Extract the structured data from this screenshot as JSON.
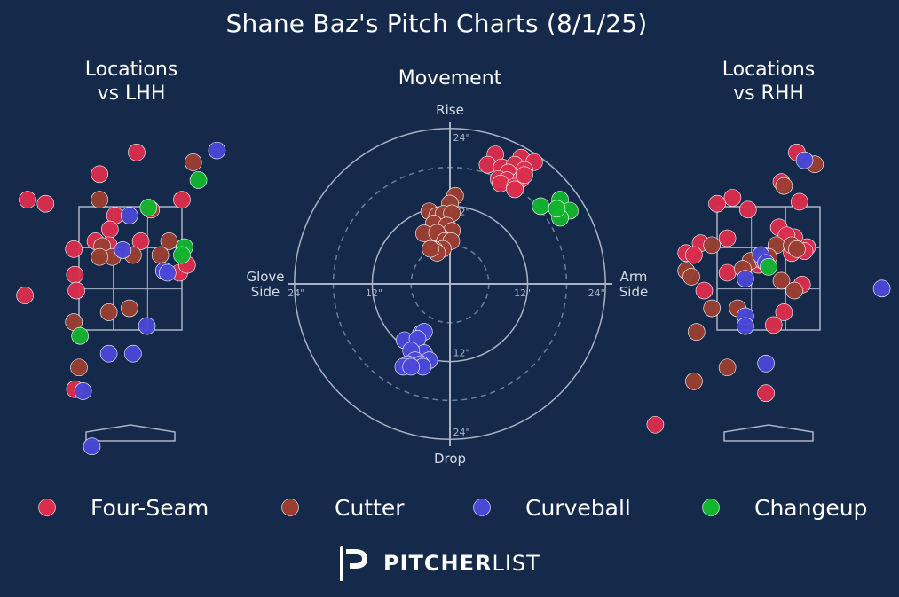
{
  "title": "Shane Baz's Pitch Charts (8/1/25)",
  "colors": {
    "background": "#152a4b",
    "four_seam": "#dc2d4d",
    "cutter": "#9a3e32",
    "curveball": "#4a48d8",
    "changeup": "#13b52e",
    "guide": "#a9b3c4"
  },
  "legend": [
    {
      "key": "four_seam",
      "label": "Four-Seam",
      "color": "#dc2d4d"
    },
    {
      "key": "cutter",
      "label": "Cutter",
      "color": "#9a3e32"
    },
    {
      "key": "curveball",
      "label": "Curveball",
      "color": "#4a48d8"
    },
    {
      "key": "changeup",
      "label": "Changeup",
      "color": "#13b52e"
    }
  ],
  "brand": {
    "icon": "pitcherlist-p-icon",
    "bold": "PITCHER",
    "light": "LIST"
  },
  "chart_data": [
    {
      "type": "scatter",
      "title": "Locations\nvs LHH",
      "title_lines": [
        "Locations",
        "vs LHH"
      ],
      "units": "strike-zone units (zone spans x -1..1, y 0..1.25)",
      "xlim": [
        -2.0,
        2.4
      ],
      "ylim": [
        -1.25,
        2.0
      ],
      "points": [
        {
          "pitch": "four_seam",
          "x": -2.0,
          "y": 1.32
        },
        {
          "pitch": "four_seam",
          "x": -1.65,
          "y": 1.28
        },
        {
          "pitch": "four_seam",
          "x": -0.6,
          "y": 1.58
        },
        {
          "pitch": "four_seam",
          "x": 0.12,
          "y": 1.8
        },
        {
          "pitch": "four_seam",
          "x": -0.3,
          "y": 1.16
        },
        {
          "pitch": "four_seam",
          "x": -0.4,
          "y": 1.02
        },
        {
          "pitch": "four_seam",
          "x": -0.68,
          "y": 0.9
        },
        {
          "pitch": "four_seam",
          "x": -1.1,
          "y": 0.82
        },
        {
          "pitch": "four_seam",
          "x": -0.42,
          "y": 0.86
        },
        {
          "pitch": "four_seam",
          "x": 0.2,
          "y": 0.9
        },
        {
          "pitch": "four_seam",
          "x": 1.0,
          "y": 1.32
        },
        {
          "pitch": "four_seam",
          "x": -1.08,
          "y": 0.56
        },
        {
          "pitch": "four_seam",
          "x": -1.05,
          "y": 0.4
        },
        {
          "pitch": "four_seam",
          "x": -2.05,
          "y": 0.35
        },
        {
          "pitch": "four_seam",
          "x": 0.95,
          "y": 0.58
        },
        {
          "pitch": "four_seam",
          "x": 1.1,
          "y": 0.66
        },
        {
          "pitch": "four_seam",
          "x": -1.08,
          "y": -0.6
        },
        {
          "pitch": "cutter",
          "x": 1.22,
          "y": 1.7
        },
        {
          "pitch": "cutter",
          "x": -0.6,
          "y": 1.32
        },
        {
          "pitch": "cutter",
          "x": 0.4,
          "y": 1.22
        },
        {
          "pitch": "cutter",
          "x": -0.55,
          "y": 0.85
        },
        {
          "pitch": "cutter",
          "x": -0.35,
          "y": 0.74
        },
        {
          "pitch": "cutter",
          "x": 0.05,
          "y": 0.76
        },
        {
          "pitch": "cutter",
          "x": 0.75,
          "y": 0.9
        },
        {
          "pitch": "cutter",
          "x": 0.58,
          "y": 0.76
        },
        {
          "pitch": "cutter",
          "x": -0.6,
          "y": 0.74
        },
        {
          "pitch": "cutter",
          "x": -0.42,
          "y": 0.18
        },
        {
          "pitch": "cutter",
          "x": -0.02,
          "y": 0.22
        },
        {
          "pitch": "cutter",
          "x": -1.1,
          "y": 0.08
        },
        {
          "pitch": "cutter",
          "x": -1.0,
          "y": -0.38
        },
        {
          "pitch": "curveball",
          "x": 1.68,
          "y": 1.82
        },
        {
          "pitch": "curveball",
          "x": -0.02,
          "y": 1.16
        },
        {
          "pitch": "curveball",
          "x": -0.15,
          "y": 0.81
        },
        {
          "pitch": "curveball",
          "x": 0.65,
          "y": 0.6
        },
        {
          "pitch": "curveball",
          "x": 0.72,
          "y": 0.58
        },
        {
          "pitch": "curveball",
          "x": 0.32,
          "y": 0.04
        },
        {
          "pitch": "curveball",
          "x": -0.42,
          "y": -0.24
        },
        {
          "pitch": "curveball",
          "x": 0.05,
          "y": -0.24
        },
        {
          "pitch": "curveball",
          "x": -0.92,
          "y": -0.62
        },
        {
          "pitch": "curveball",
          "x": -0.75,
          "y": -1.18
        },
        {
          "pitch": "changeup",
          "x": 0.35,
          "y": 1.24
        },
        {
          "pitch": "changeup",
          "x": 1.32,
          "y": 1.52
        },
        {
          "pitch": "changeup",
          "x": 1.05,
          "y": 0.84
        },
        {
          "pitch": "changeup",
          "x": 1.0,
          "y": 0.76
        },
        {
          "pitch": "changeup",
          "x": -0.98,
          "y": -0.06
        }
      ]
    },
    {
      "type": "scatter",
      "title": "Movement",
      "xlabel_left": "Glove\nSide",
      "xlabel_left_lines": [
        "Glove",
        "Side"
      ],
      "xlabel_right": "Arm\nSide",
      "xlabel_right_lines": [
        "Arm",
        "Side"
      ],
      "ylabel_top": "Rise",
      "ylabel_bottom": "Drop",
      "units": "inches",
      "rings": [
        6,
        12,
        18,
        24
      ],
      "tick_labels": {
        "x_neg": [
          "24\"",
          "12\""
        ],
        "x_pos": [
          "12\"",
          "24\""
        ],
        "y_pos": [
          "24\"",
          "12\""
        ],
        "y_neg": [
          "12\"",
          "24\""
        ]
      },
      "xlim": [
        -25,
        25
      ],
      "ylim": [
        -25,
        25
      ],
      "points": [
        {
          "pitch": "four_seam",
          "x": 7.0,
          "y": 20.0
        },
        {
          "pitch": "four_seam",
          "x": 11.0,
          "y": 19.5
        },
        {
          "pitch": "four_seam",
          "x": 13.0,
          "y": 18.8
        },
        {
          "pitch": "four_seam",
          "x": 5.8,
          "y": 18.4
        },
        {
          "pitch": "four_seam",
          "x": 8.0,
          "y": 18.0
        },
        {
          "pitch": "four_seam",
          "x": 10.0,
          "y": 18.4
        },
        {
          "pitch": "four_seam",
          "x": 11.5,
          "y": 17.6
        },
        {
          "pitch": "four_seam",
          "x": 9.0,
          "y": 17.2
        },
        {
          "pitch": "four_seam",
          "x": 7.5,
          "y": 16.2
        },
        {
          "pitch": "four_seam",
          "x": 8.8,
          "y": 16.0
        },
        {
          "pitch": "four_seam",
          "x": 11.0,
          "y": 16.2
        },
        {
          "pitch": "four_seam",
          "x": 7.8,
          "y": 15.5
        },
        {
          "pitch": "four_seam",
          "x": 10.0,
          "y": 15.0
        },
        {
          "pitch": "four_seam",
          "x": 11.5,
          "y": 16.8
        },
        {
          "pitch": "four_seam",
          "x": 10.0,
          "y": 14.6
        },
        {
          "pitch": "cutter",
          "x": 0.8,
          "y": 13.6
        },
        {
          "pitch": "cutter",
          "x": -3.2,
          "y": 11.2
        },
        {
          "pitch": "cutter",
          "x": 0.0,
          "y": 12.4
        },
        {
          "pitch": "cutter",
          "x": -2.0,
          "y": 10.5
        },
        {
          "pitch": "cutter",
          "x": -1.0,
          "y": 10.8
        },
        {
          "pitch": "cutter",
          "x": 0.3,
          "y": 10.9
        },
        {
          "pitch": "cutter",
          "x": -2.5,
          "y": 9.3
        },
        {
          "pitch": "cutter",
          "x": -0.5,
          "y": 9.0
        },
        {
          "pitch": "cutter",
          "x": 0.3,
          "y": 8.2
        },
        {
          "pitch": "cutter",
          "x": -4.0,
          "y": 7.8
        },
        {
          "pitch": "cutter",
          "x": -1.5,
          "y": 7.3
        },
        {
          "pitch": "cutter",
          "x": -2.0,
          "y": 7.9
        },
        {
          "pitch": "cutter",
          "x": -0.8,
          "y": 6.6
        },
        {
          "pitch": "cutter",
          "x": 0.2,
          "y": 6.6
        },
        {
          "pitch": "cutter",
          "x": -1.1,
          "y": 5.4
        },
        {
          "pitch": "cutter",
          "x": -2.3,
          "y": 5.2
        },
        {
          "pitch": "cutter",
          "x": -2.0,
          "y": 4.8
        },
        {
          "pitch": "cutter",
          "x": -3.0,
          "y": 5.4
        },
        {
          "pitch": "changeup",
          "x": 14.0,
          "y": 12.0
        },
        {
          "pitch": "changeup",
          "x": 17.0,
          "y": 13.0
        },
        {
          "pitch": "changeup",
          "x": 18.5,
          "y": 11.3
        },
        {
          "pitch": "changeup",
          "x": 17.0,
          "y": 10.2
        },
        {
          "pitch": "changeup",
          "x": 16.5,
          "y": 11.6
        },
        {
          "pitch": "curveball",
          "x": -4.5,
          "y": -7.7
        },
        {
          "pitch": "curveball",
          "x": -4.0,
          "y": -7.4
        },
        {
          "pitch": "curveball",
          "x": -7.0,
          "y": -8.7
        },
        {
          "pitch": "curveball",
          "x": -5.0,
          "y": -8.5
        },
        {
          "pitch": "curveball",
          "x": -4.0,
          "y": -10.7
        },
        {
          "pitch": "curveball",
          "x": -6.0,
          "y": -10.3
        },
        {
          "pitch": "curveball",
          "x": -5.4,
          "y": -11.8
        },
        {
          "pitch": "curveball",
          "x": -3.2,
          "y": -11.8
        },
        {
          "pitch": "curveball",
          "x": -4.5,
          "y": -12.4
        },
        {
          "pitch": "curveball",
          "x": -6.5,
          "y": -12.4
        },
        {
          "pitch": "curveball",
          "x": -7.2,
          "y": -12.8
        },
        {
          "pitch": "curveball",
          "x": -4.2,
          "y": -12.8
        },
        {
          "pitch": "curveball",
          "x": -6.0,
          "y": -12.8
        }
      ]
    },
    {
      "type": "scatter",
      "title": "Locations\nvs RHH",
      "title_lines": [
        "Locations",
        "vs RHH"
      ],
      "units": "strike-zone units (zone spans x -1..1, y 0..1.25)",
      "xlim": [
        -2.2,
        2.2
      ],
      "ylim": [
        -1.25,
        2.0
      ],
      "points": [
        {
          "pitch": "four_seam",
          "x": 0.55,
          "y": 1.8
        },
        {
          "pitch": "four_seam",
          "x": 0.25,
          "y": 1.5
        },
        {
          "pitch": "four_seam",
          "x": -0.7,
          "y": 1.34
        },
        {
          "pitch": "four_seam",
          "x": -1.0,
          "y": 1.28
        },
        {
          "pitch": "four_seam",
          "x": -0.4,
          "y": 1.22
        },
        {
          "pitch": "four_seam",
          "x": 0.6,
          "y": 1.3
        },
        {
          "pitch": "four_seam",
          "x": -1.32,
          "y": 0.88
        },
        {
          "pitch": "four_seam",
          "x": -1.6,
          "y": 0.78
        },
        {
          "pitch": "four_seam",
          "x": -1.45,
          "y": 0.76
        },
        {
          "pitch": "four_seam",
          "x": -0.8,
          "y": 0.93
        },
        {
          "pitch": "four_seam",
          "x": 0.2,
          "y": 1.04
        },
        {
          "pitch": "four_seam",
          "x": 0.5,
          "y": 0.94
        },
        {
          "pitch": "four_seam",
          "x": 0.75,
          "y": 0.84
        },
        {
          "pitch": "four_seam",
          "x": 0.45,
          "y": 0.78
        },
        {
          "pitch": "four_seam",
          "x": 0.35,
          "y": 0.96
        },
        {
          "pitch": "four_seam",
          "x": 0.7,
          "y": 0.8
        },
        {
          "pitch": "four_seam",
          "x": -0.8,
          "y": 0.58
        },
        {
          "pitch": "four_seam",
          "x": -0.2,
          "y": 0.66
        },
        {
          "pitch": "four_seam",
          "x": -1.25,
          "y": 0.4
        },
        {
          "pitch": "four_seam",
          "x": 0.65,
          "y": 0.46
        },
        {
          "pitch": "four_seam",
          "x": 0.3,
          "y": 0.18
        },
        {
          "pitch": "four_seam",
          "x": 0.1,
          "y": 0.05
        },
        {
          "pitch": "four_seam",
          "x": -0.05,
          "y": -0.64
        },
        {
          "pitch": "four_seam",
          "x": -2.2,
          "y": -0.96
        },
        {
          "pitch": "cutter",
          "x": 0.9,
          "y": 1.68
        },
        {
          "pitch": "cutter",
          "x": 0.3,
          "y": 1.46
        },
        {
          "pitch": "cutter",
          "x": -1.1,
          "y": 0.86
        },
        {
          "pitch": "cutter",
          "x": 0.15,
          "y": 0.86
        },
        {
          "pitch": "cutter",
          "x": 0.45,
          "y": 0.86
        },
        {
          "pitch": "cutter",
          "x": 0.55,
          "y": 0.82
        },
        {
          "pitch": "cutter",
          "x": -0.35,
          "y": 0.7
        },
        {
          "pitch": "cutter",
          "x": -0.1,
          "y": 0.7
        },
        {
          "pitch": "cutter",
          "x": 0.0,
          "y": 0.74
        },
        {
          "pitch": "cutter",
          "x": -0.5,
          "y": 0.62
        },
        {
          "pitch": "cutter",
          "x": -1.6,
          "y": 0.6
        },
        {
          "pitch": "cutter",
          "x": -1.5,
          "y": 0.54
        },
        {
          "pitch": "cutter",
          "x": 0.25,
          "y": 0.5
        },
        {
          "pitch": "cutter",
          "x": 0.5,
          "y": 0.4
        },
        {
          "pitch": "cutter",
          "x": -1.1,
          "y": 0.22
        },
        {
          "pitch": "cutter",
          "x": -0.6,
          "y": 0.22
        },
        {
          "pitch": "cutter",
          "x": -1.4,
          "y": -0.02
        },
        {
          "pitch": "cutter",
          "x": -0.8,
          "y": -0.38
        },
        {
          "pitch": "cutter",
          "x": -1.45,
          "y": -0.52
        },
        {
          "pitch": "curveball",
          "x": 0.7,
          "y": 1.72
        },
        {
          "pitch": "curveball",
          "x": -0.15,
          "y": 0.76
        },
        {
          "pitch": "curveball",
          "x": -0.05,
          "y": 0.68
        },
        {
          "pitch": "curveball",
          "x": 2.2,
          "y": 0.42
        },
        {
          "pitch": "curveball",
          "x": -0.45,
          "y": 0.52
        },
        {
          "pitch": "curveball",
          "x": -0.45,
          "y": 0.14
        },
        {
          "pitch": "curveball",
          "x": -0.45,
          "y": 0.04
        },
        {
          "pitch": "curveball",
          "x": -0.05,
          "y": -0.34
        },
        {
          "pitch": "changeup",
          "x": 0.0,
          "y": 0.64
        }
      ]
    }
  ]
}
